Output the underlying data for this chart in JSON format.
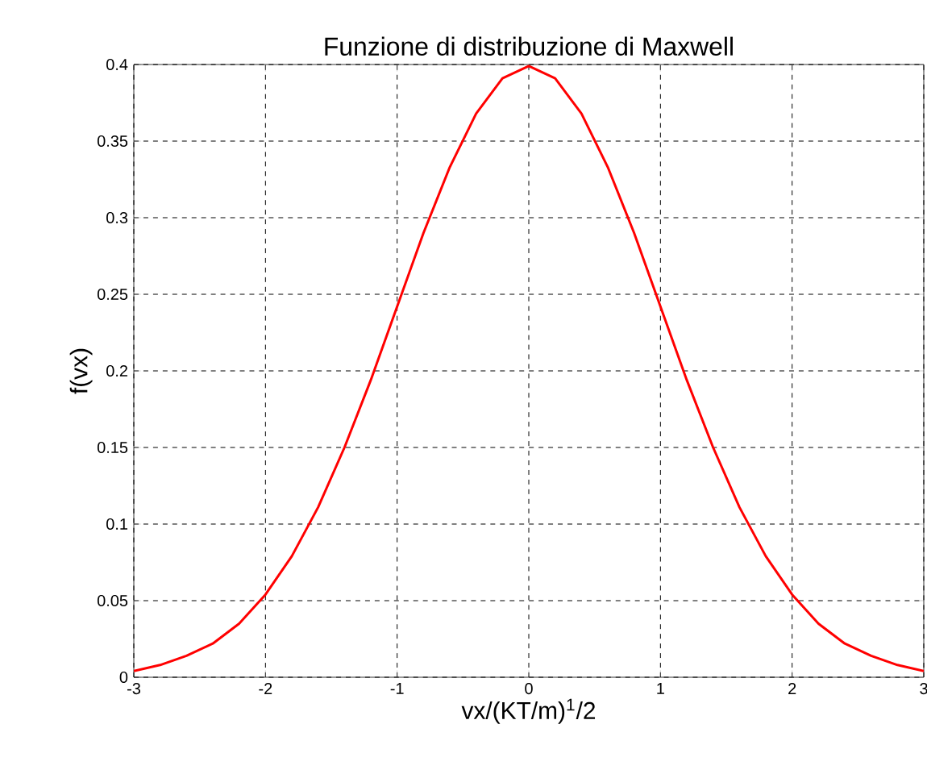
{
  "chart_data": {
    "type": "line",
    "title": "Funzione di distribuzione di Maxwell",
    "xlabel": "vx/(KT/m)$^{1}$/2",
    "ylabel": "f(vx)",
    "x": [
      -3,
      -2.8,
      -2.6,
      -2.4,
      -2.2,
      -2,
      -1.8,
      -1.6,
      -1.4,
      -1.2,
      -1,
      -0.8,
      -0.6,
      -0.4,
      -0.2,
      0,
      0.2,
      0.4,
      0.6,
      0.8,
      1,
      1.2,
      1.4,
      1.6,
      1.8,
      2,
      2.2,
      2.4,
      2.6,
      2.8,
      3
    ],
    "series": [
      {
        "color": "#ff0000",
        "values": [
          0.004,
          0.008,
          0.014,
          0.022,
          0.035,
          0.054,
          0.079,
          0.111,
          0.15,
          0.194,
          0.242,
          0.29,
          0.333,
          0.368,
          0.391,
          0.399,
          0.391,
          0.368,
          0.333,
          0.29,
          0.242,
          0.194,
          0.15,
          0.111,
          0.079,
          0.054,
          0.035,
          0.022,
          0.014,
          0.008,
          0.004
        ]
      }
    ],
    "xlim": [
      -3,
      3
    ],
    "ylim": [
      0,
      0.4
    ],
    "xticks": [
      -3,
      -2,
      -1,
      0,
      1,
      2,
      3
    ],
    "yticks": [
      0,
      0.05,
      0.1,
      0.15,
      0.2,
      0.25,
      0.3,
      0.35,
      0.4
    ],
    "grid": true,
    "line_style": "solid",
    "marker": "none"
  }
}
